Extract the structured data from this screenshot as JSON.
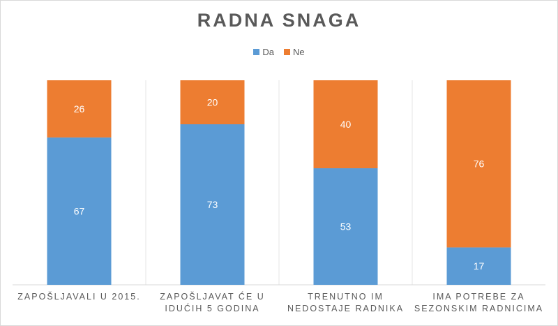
{
  "chart_data": {
    "type": "bar",
    "stacked": true,
    "title": "RADNA SNAGA",
    "categories": [
      [
        "ZAPOŠLJAVALI U 2015."
      ],
      [
        "ZAPOŠLJAVAT ĆE U",
        "IDUĆIH 5 GODINA"
      ],
      [
        "TRENUTNO IM",
        "NEDOSTAJE RADNIKA"
      ],
      [
        "IMA POTREBE ZA",
        "SEZONSKIM RADNICIMA"
      ]
    ],
    "series": [
      {
        "name": "Da",
        "color": "#5b9bd5",
        "values": [
          67,
          73,
          53,
          17
        ]
      },
      {
        "name": "Ne",
        "color": "#ed7d31",
        "values": [
          26,
          20,
          40,
          76
        ]
      }
    ],
    "legend_position": "top",
    "grid": false,
    "data_labels": true
  }
}
